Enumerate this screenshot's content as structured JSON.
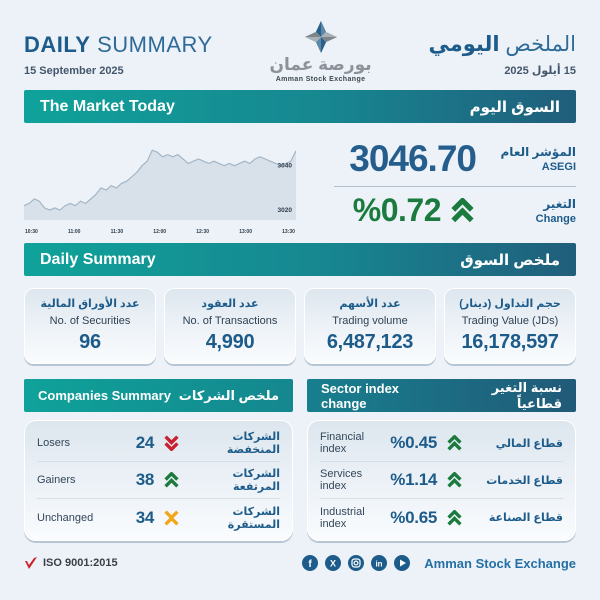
{
  "header": {
    "title_en_bold": "DAILY",
    "title_en_light": "SUMMARY",
    "date_en": "15 September 2025",
    "title_ar_light": "الملخص",
    "title_ar_bold": "اليومي",
    "date_ar": "15 أيلول 2025",
    "logo": {
      "ar": "بورصة عمان",
      "en": "Amman Stock Exchange"
    }
  },
  "market_today": {
    "banner_en": "The Market Today",
    "banner_ar": "السوق اليوم",
    "index_value": "3046.70",
    "index_label_ar": "المؤشر العام",
    "index_label_en": "ASEGI",
    "change_value": "%0.72",
    "change_label_ar": "التغير",
    "change_label_en": "Change",
    "change_direction": "up"
  },
  "chart_data": {
    "type": "area",
    "title": "ASEGI intraday index",
    "x_ticks": [
      "10:30",
      "11:00",
      "11:30",
      "12:00",
      "12:30",
      "13:00",
      "13:30"
    ],
    "y_ticks": [
      3040,
      3020
    ],
    "ylim": [
      3016,
      3052
    ],
    "values": [
      3022,
      3023,
      3025,
      3024,
      3021,
      3020,
      3021,
      3020,
      3022,
      3023,
      3022,
      3024,
      3023,
      3025,
      3027,
      3030,
      3029,
      3031,
      3030,
      3032,
      3033,
      3035,
      3037,
      3040,
      3042,
      3047,
      3046,
      3044,
      3045,
      3044,
      3045,
      3043,
      3041,
      3042,
      3043,
      3042,
      3041,
      3042,
      3041,
      3040,
      3041,
      3040,
      3041,
      3042,
      3041,
      3043,
      3044,
      3043,
      3042,
      3041,
      3040,
      3041,
      3042,
      3046.7
    ],
    "line_color": "#a3b6c6",
    "fill_color": "#d3dde7",
    "grid": false,
    "legend": "none"
  },
  "daily_summary": {
    "banner_en": "Daily Summary",
    "banner_ar": "ملخص السوق",
    "stats": [
      {
        "ar": "عدد الأوراق المالية",
        "en": "No. of Securities",
        "value": "96"
      },
      {
        "ar": "عدد العقود",
        "en": "No. of Transactions",
        "value": "4,990"
      },
      {
        "ar": "عدد الأسهم",
        "en": "Trading volume",
        "value": "6,487,123"
      },
      {
        "ar": "حجم التداول (دينار)",
        "en": "Trading Value (JDs)",
        "value": "16,178,597"
      }
    ]
  },
  "companies_summary": {
    "header_en": "Companies Summary",
    "header_ar": "ملخص الشركات",
    "rows": [
      {
        "en": "Losers",
        "value": "24",
        "ar": "الشركات المنخفضة",
        "direction": "down"
      },
      {
        "en": "Gainers",
        "value": "38",
        "ar": "الشركات المرتفعة",
        "direction": "up"
      },
      {
        "en": "Unchanged",
        "value": "34",
        "ar": "الشركات المستقرة",
        "direction": "neutral"
      }
    ]
  },
  "sector_index": {
    "header_en": "Sector index change",
    "header_ar": "نسبة التغير قطاعياً",
    "rows": [
      {
        "en": "Financial index",
        "value": "%0.45",
        "ar": "قطاع المالي",
        "direction": "up"
      },
      {
        "en": "Services index",
        "value": "%1.14",
        "ar": "قطاع الخدمات",
        "direction": "up"
      },
      {
        "en": "Industrial index",
        "value": "%0.65",
        "ar": "قطاع الصناعة",
        "direction": "up"
      }
    ]
  },
  "footer": {
    "iso": "ISO 9001:2015",
    "brand": "Amman Stock Exchange",
    "social": [
      "facebook",
      "x",
      "instagram",
      "linkedin",
      "youtube"
    ]
  },
  "colors": {
    "accent_teal": "#0fa29a",
    "accent_blue": "#205e7c",
    "title_blue": "#1d5c8a",
    "positive_green": "#1b7a3d",
    "negative_red": "#c8202f",
    "neutral_amber": "#f2a71b",
    "background": "#edf2f8"
  }
}
